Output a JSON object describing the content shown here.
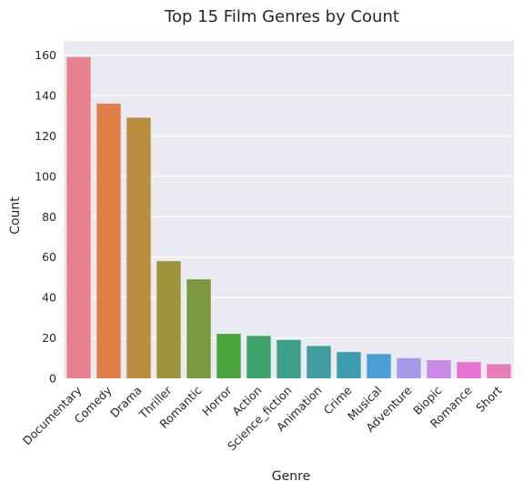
{
  "chart_data": {
    "type": "bar",
    "title": "Top 15 Film Genres by Count",
    "xlabel": "Genre",
    "ylabel": "Count",
    "ylim": [
      0,
      167
    ],
    "yticks": [
      0,
      20,
      40,
      60,
      80,
      100,
      120,
      140,
      160
    ],
    "grid": true,
    "categories": [
      "Documentary",
      "Comedy",
      "Drama",
      "Thriller",
      "Romantic",
      "Horror",
      "Action",
      "Science_fiction",
      "Animation",
      "Crime",
      "Musical",
      "Adventure",
      "Biopic",
      "Romance",
      "Short"
    ],
    "values": [
      159,
      136,
      129,
      58,
      49,
      22,
      21,
      19,
      16,
      13,
      12,
      10,
      9,
      8,
      7
    ],
    "colors": [
      "#e8818d",
      "#e07f47",
      "#b98d3e",
      "#9d943c",
      "#7c9a3d",
      "#4aa43d",
      "#3da16a",
      "#3ea08c",
      "#3f9fa0",
      "#3e9cb1",
      "#4aa0d6",
      "#a59ae8",
      "#c98ae9",
      "#e473d3",
      "#e87bb9"
    ],
    "background": "#eaeaf2"
  }
}
